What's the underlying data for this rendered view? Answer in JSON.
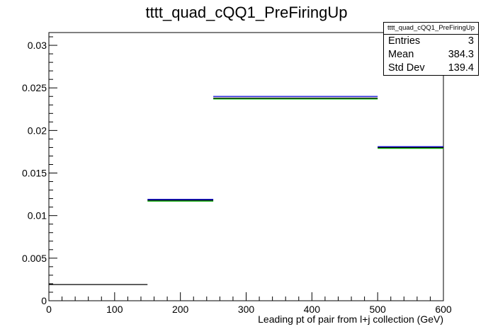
{
  "chart_data": {
    "type": "histogram",
    "title": "tttt_quad_cQQ1_PreFiringUp",
    "xlabel": "Leading pt of pair from l+j collection (GeV)",
    "ylabel": "",
    "xlim": [
      0,
      600
    ],
    "ylim": [
      0,
      0.0315
    ],
    "x_ticks": [
      0,
      100,
      200,
      300,
      400,
      500,
      600
    ],
    "y_ticks": [
      0,
      0.005,
      0.01,
      0.015,
      0.02,
      0.025,
      0.03
    ],
    "y_tick_labels": [
      "0",
      "0.005",
      "0.01",
      "0.015",
      "0.02",
      "0.025",
      "0.03"
    ],
    "bin_edges": [
      0,
      150,
      250,
      500,
      600
    ],
    "series": [
      {
        "color": "#000000",
        "values": [
          0.0019,
          0.0118,
          0.0238,
          0.018
        ]
      },
      {
        "color": "#0000cc",
        "values": [
          null,
          0.0119,
          0.024,
          0.0181
        ]
      },
      {
        "color": "#00aa00",
        "values": [
          null,
          0.0117,
          0.0237,
          0.0179
        ]
      }
    ],
    "grid": false,
    "legend": "none"
  },
  "stats_box": {
    "title": "tttt_quad_cQQ1_PreFiringUp",
    "entries_label": "Entries",
    "entries_value": "3",
    "mean_label": "Mean",
    "mean_value": "384.3",
    "stddev_label": "Std Dev",
    "stddev_value": "139.4"
  }
}
